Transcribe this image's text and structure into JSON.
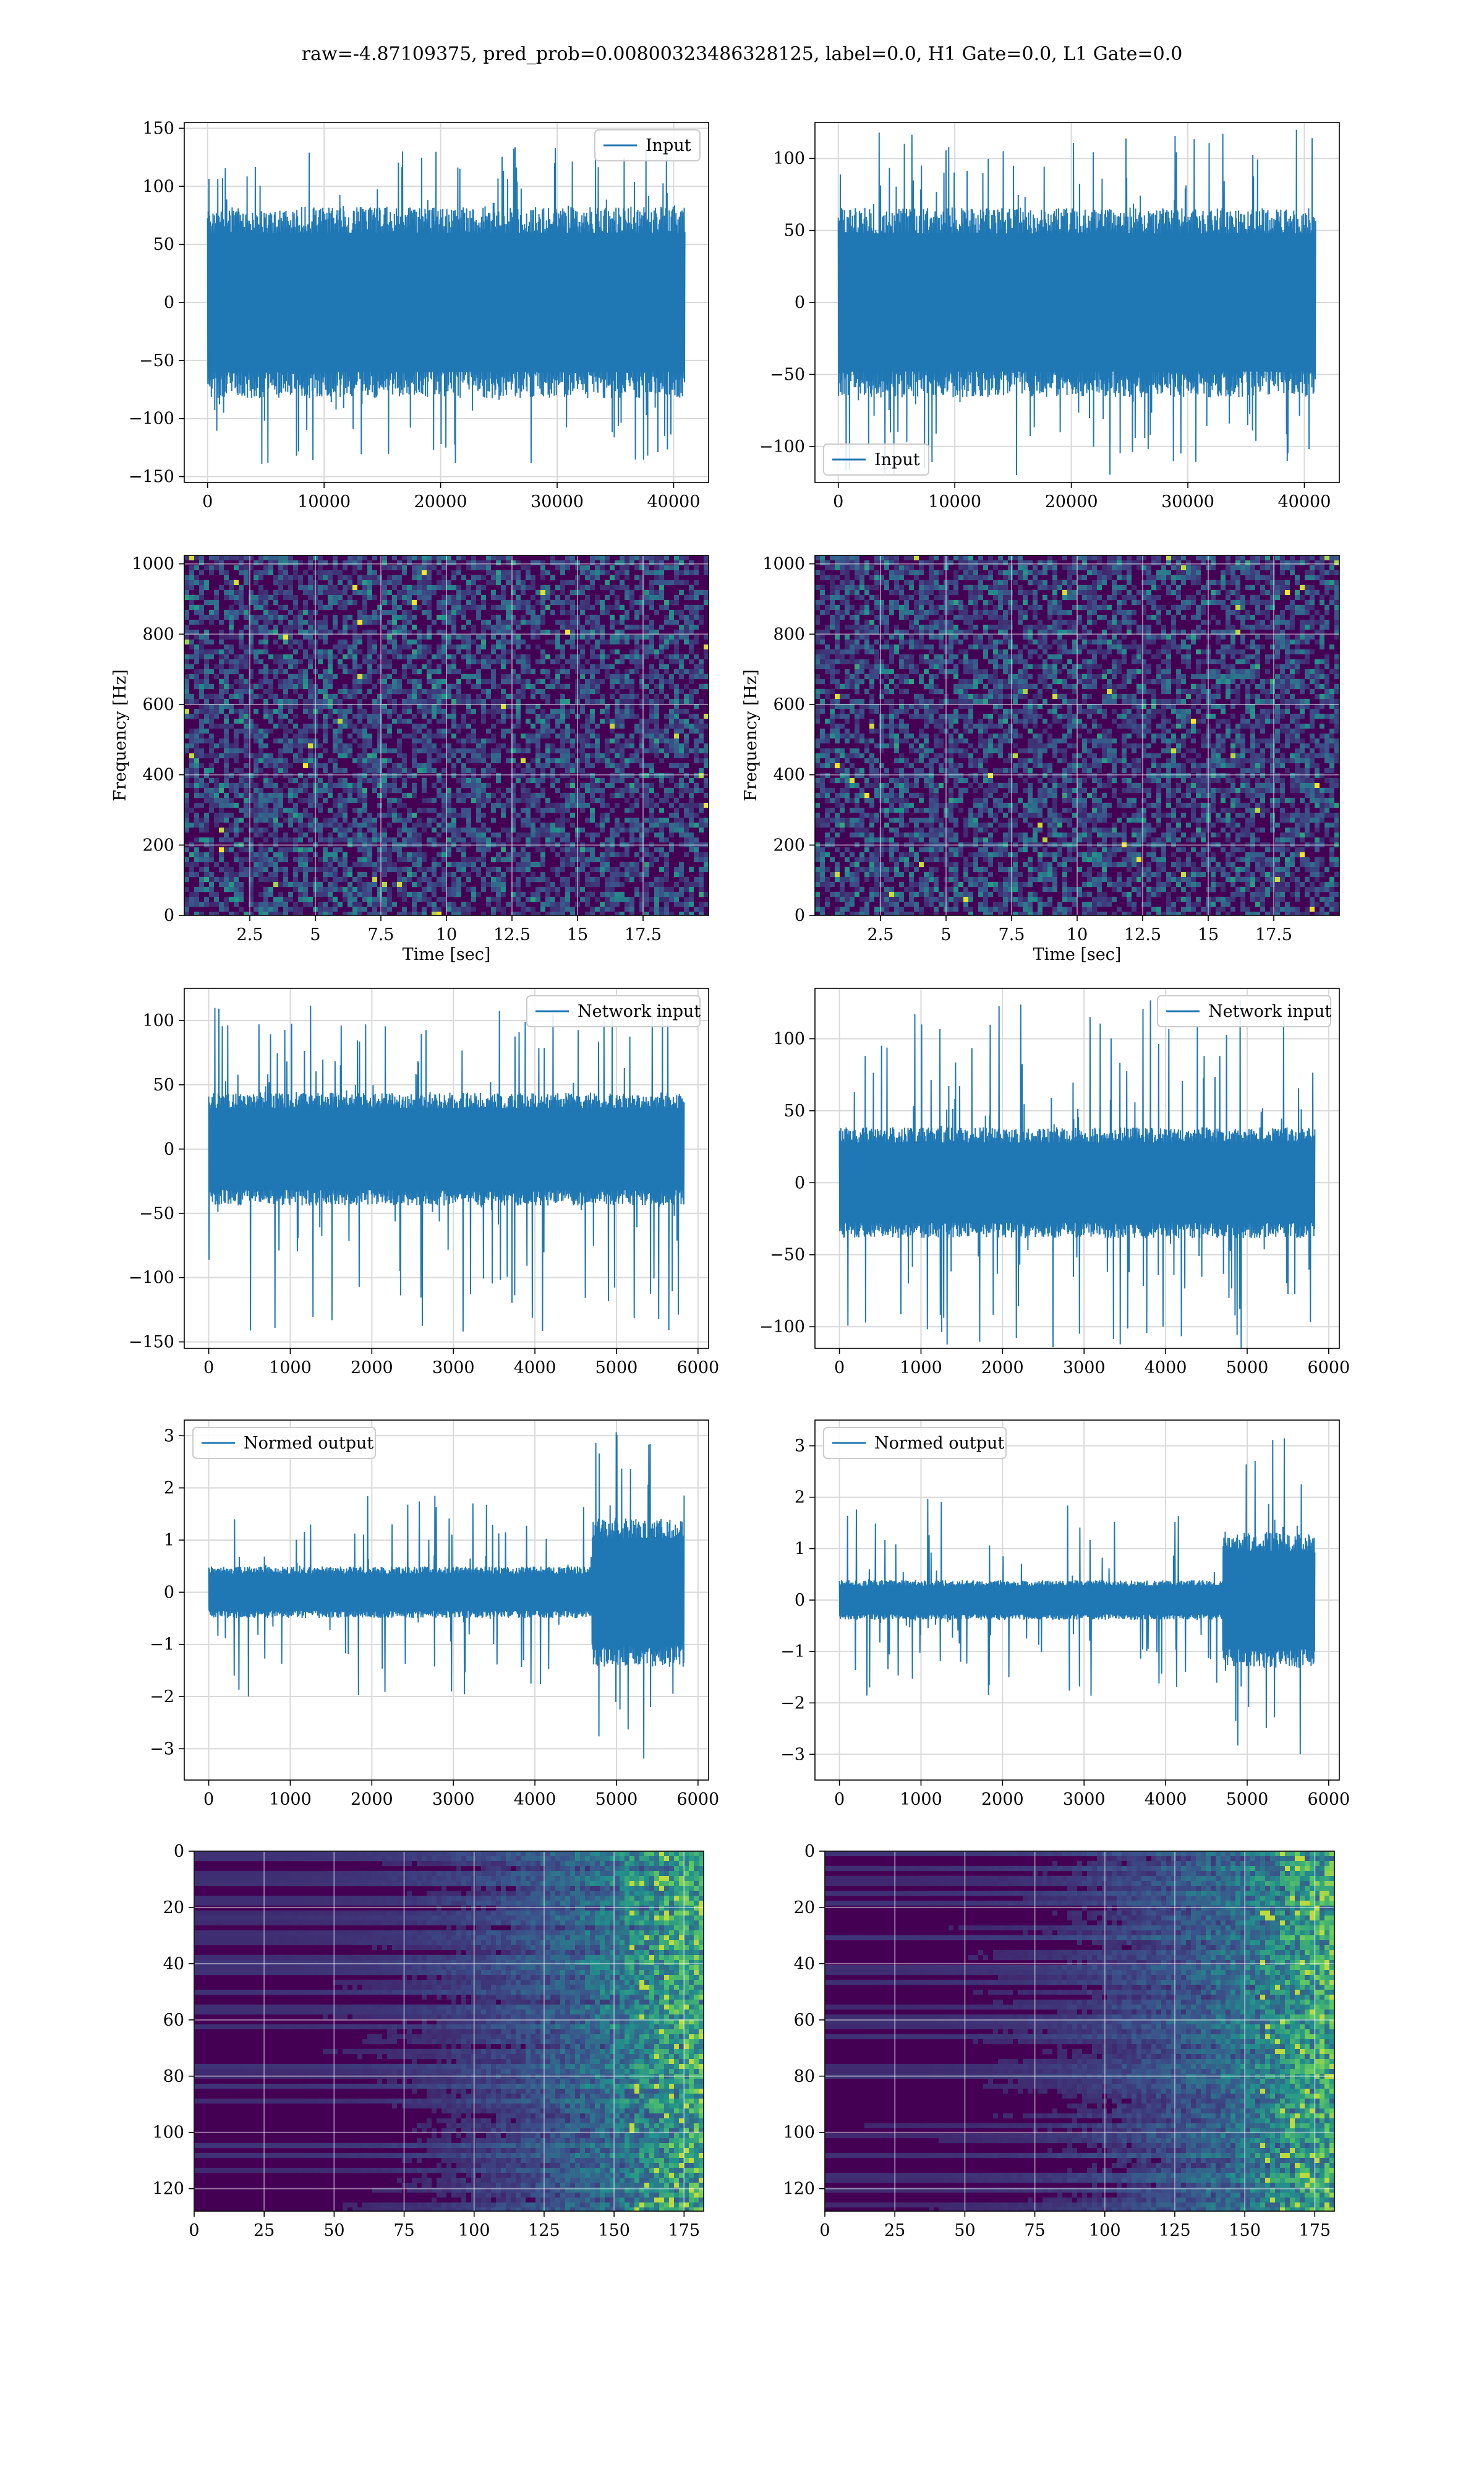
{
  "suptitle": "raw=-4.87109375, pred_prob=0.00800323486328125, label=0.0, H1 Gate=0.0, L1 Gate=0.0",
  "colors": {
    "line": "#1f77b4",
    "grid": "#d9d9d9",
    "spine": "#000000",
    "viridis_dark": "#440154",
    "viridis_mid": "#31688e",
    "viridis_green": "#35b779",
    "viridis_yellow": "#fde725"
  },
  "chart_data": [
    {
      "id": "p1",
      "type": "line",
      "legend": "Input",
      "legend_loc": "upper right",
      "xlim": [
        -2000,
        43000
      ],
      "ylim": [
        -155,
        155
      ],
      "xticks": [
        0,
        10000,
        20000,
        30000,
        40000
      ],
      "yticks": [
        -150,
        -100,
        -50,
        0,
        50,
        100,
        150
      ],
      "x_extent": [
        0,
        40960
      ],
      "band": [
        -75,
        75
      ],
      "peak_range": [
        -140,
        135
      ],
      "grid": true
    },
    {
      "id": "p2",
      "type": "line",
      "legend": "Input",
      "legend_loc": "lower left",
      "xlim": [
        -2000,
        43000
      ],
      "ylim": [
        -125,
        125
      ],
      "xticks": [
        0,
        10000,
        20000,
        30000,
        40000
      ],
      "yticks": [
        -100,
        -50,
        0,
        50,
        100
      ],
      "x_extent": [
        0,
        40960
      ],
      "band": [
        -60,
        60
      ],
      "peak_range": [
        -120,
        120
      ],
      "grid": true
    },
    {
      "id": "p3",
      "type": "heatmap",
      "colormap": "viridis",
      "xlim": [
        0,
        20
      ],
      "ylim": [
        0,
        1024
      ],
      "xticks": [
        2.5,
        5.0,
        7.5,
        10.0,
        12.5,
        15.0,
        17.5
      ],
      "yticks": [
        0,
        200,
        400,
        600,
        800,
        1000
      ],
      "xlabel": "Time [sec]",
      "ylabel": "Frequency [Hz]",
      "grid": true
    },
    {
      "id": "p4",
      "type": "heatmap",
      "colormap": "viridis",
      "xlim": [
        0,
        20
      ],
      "ylim": [
        0,
        1024
      ],
      "xticks": [
        2.5,
        5.0,
        7.5,
        10.0,
        12.5,
        15.0,
        17.5
      ],
      "yticks": [
        0,
        200,
        400,
        600,
        800,
        1000
      ],
      "xlabel": "Time [sec]",
      "ylabel": "Frequency [Hz]",
      "grid": true
    },
    {
      "id": "p5",
      "type": "line",
      "legend": "Network input",
      "legend_loc": "upper right",
      "xlim": [
        -300,
        6130
      ],
      "ylim": [
        -155,
        125
      ],
      "xticks": [
        0,
        1000,
        2000,
        3000,
        4000,
        5000,
        6000
      ],
      "yticks": [
        -150,
        -100,
        -50,
        0,
        50,
        100
      ],
      "x_extent": [
        0,
        5830
      ],
      "band": [
        -40,
        40
      ],
      "peak_range": [
        -145,
        115
      ],
      "grid": true
    },
    {
      "id": "p6",
      "type": "line",
      "legend": "Network input",
      "legend_loc": "upper right",
      "xlim": [
        -300,
        6130
      ],
      "ylim": [
        -115,
        135
      ],
      "xticks": [
        0,
        1000,
        2000,
        3000,
        4000,
        5000,
        6000
      ],
      "yticks": [
        -100,
        -50,
        0,
        50,
        100
      ],
      "x_extent": [
        0,
        5830
      ],
      "band": [
        -35,
        35
      ],
      "peak_range": [
        -115,
        128
      ],
      "grid": true
    },
    {
      "id": "p7",
      "type": "line",
      "legend": "Normed output",
      "legend_loc": "upper left",
      "xlim": [
        -300,
        6130
      ],
      "ylim": [
        -3.6,
        3.3
      ],
      "xticks": [
        0,
        1000,
        2000,
        3000,
        4000,
        5000,
        6000
      ],
      "yticks": [
        -3,
        -2,
        -1,
        0,
        1,
        2,
        3
      ],
      "x_extent": [
        0,
        5830
      ],
      "band": [
        -0.45,
        0.45
      ],
      "peak_range": [
        -3.4,
        3.1
      ],
      "burst_from": 4700,
      "burst_band": [
        -1.3,
        1.3
      ],
      "grid": true
    },
    {
      "id": "p8",
      "type": "line",
      "legend": "Normed output",
      "legend_loc": "upper left",
      "xlim": [
        -300,
        6130
      ],
      "ylim": [
        -3.5,
        3.5
      ],
      "xticks": [
        0,
        1000,
        2000,
        3000,
        4000,
        5000,
        6000
      ],
      "yticks": [
        -3,
        -2,
        -1,
        0,
        1,
        2,
        3
      ],
      "x_extent": [
        0,
        5830
      ],
      "band": [
        -0.35,
        0.35
      ],
      "peak_range": [
        -3.1,
        3.3
      ],
      "burst_from": 4700,
      "burst_band": [
        -1.2,
        1.2
      ],
      "grid": true
    },
    {
      "id": "p9",
      "type": "heatmap",
      "colormap": "viridis",
      "xlim": [
        0,
        182
      ],
      "ylim": [
        128,
        0
      ],
      "xticks": [
        0,
        25,
        50,
        75,
        100,
        125,
        150,
        175
      ],
      "yticks": [
        0,
        20,
        40,
        60,
        80,
        100,
        120
      ],
      "grid": true
    },
    {
      "id": "p10",
      "type": "heatmap",
      "colormap": "viridis",
      "xlim": [
        0,
        182
      ],
      "ylim": [
        128,
        0
      ],
      "xticks": [
        0,
        25,
        50,
        75,
        100,
        125,
        150,
        175
      ],
      "yticks": [
        0,
        20,
        40,
        60,
        80,
        100,
        120
      ],
      "grid": true
    }
  ]
}
